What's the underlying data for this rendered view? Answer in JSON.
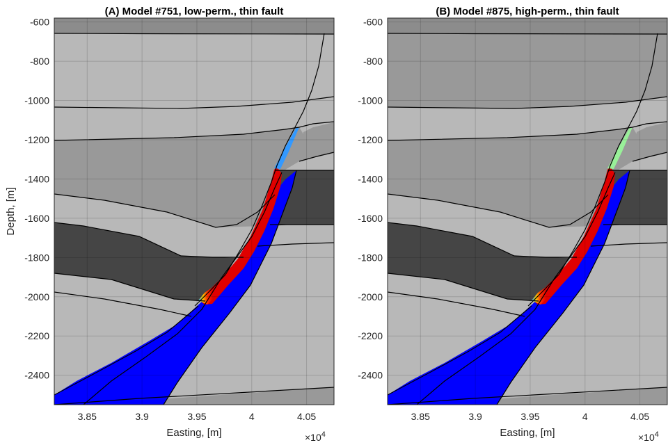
{
  "chart_data": [
    {
      "type": "area",
      "title": "(A) Model #751, low-perm., thin fault",
      "xlabel": "Easting, [m]",
      "ylabel": "Depth, [m]",
      "x_multiplier_label": "×10",
      "x_multiplier_exp": "4",
      "xlim": [
        38200,
        40750
      ],
      "ylim": [
        -2550,
        -580
      ],
      "xticks": [
        38500,
        39000,
        39500,
        40000,
        40500
      ],
      "xtick_labels": [
        "3.85",
        "3.9",
        "3.95",
        "4",
        "4.05"
      ],
      "yticks": [
        -600,
        -800,
        -1000,
        -1200,
        -1400,
        -1600,
        -1800,
        -2000,
        -2200,
        -2400
      ],
      "ytick_labels": [
        "-600",
        "-800",
        "-1000",
        "-1200",
        "-1400",
        "-1600",
        "-1800",
        "-2000",
        "-2200",
        "-2400"
      ],
      "grid": true,
      "fault_upper_color": "#3399ff"
    },
    {
      "type": "area",
      "title": "(B) Model #875, high-perm., thin fault",
      "xlabel": "Easting, [m]",
      "ylabel": "",
      "x_multiplier_label": "×10",
      "x_multiplier_exp": "4",
      "xlim": [
        38200,
        40750
      ],
      "ylim": [
        -2550,
        -580
      ],
      "xticks": [
        38500,
        39000,
        39500,
        40000,
        40500
      ],
      "xtick_labels": [
        "3.85",
        "3.9",
        "3.95",
        "4",
        "4.05"
      ],
      "yticks": [
        -600,
        -800,
        -1000,
        -1200,
        -1400,
        -1600,
        -1800,
        -2000,
        -2200,
        -2400
      ],
      "ytick_labels": [
        "-600",
        "-800",
        "-1000",
        "-1200",
        "-1400",
        "-1600",
        "-1800",
        "-2000",
        "-2200",
        "-2400"
      ],
      "grid": true,
      "fault_upper_color": "#99f099"
    }
  ],
  "colors": {
    "layer_top": "#8c8c8c",
    "layer_light": "#b8b8b8",
    "layer_mid": "#999999",
    "layer_dark": "#454545",
    "reservoir": "#0000ff",
    "fault_hot": "#e00000"
  }
}
